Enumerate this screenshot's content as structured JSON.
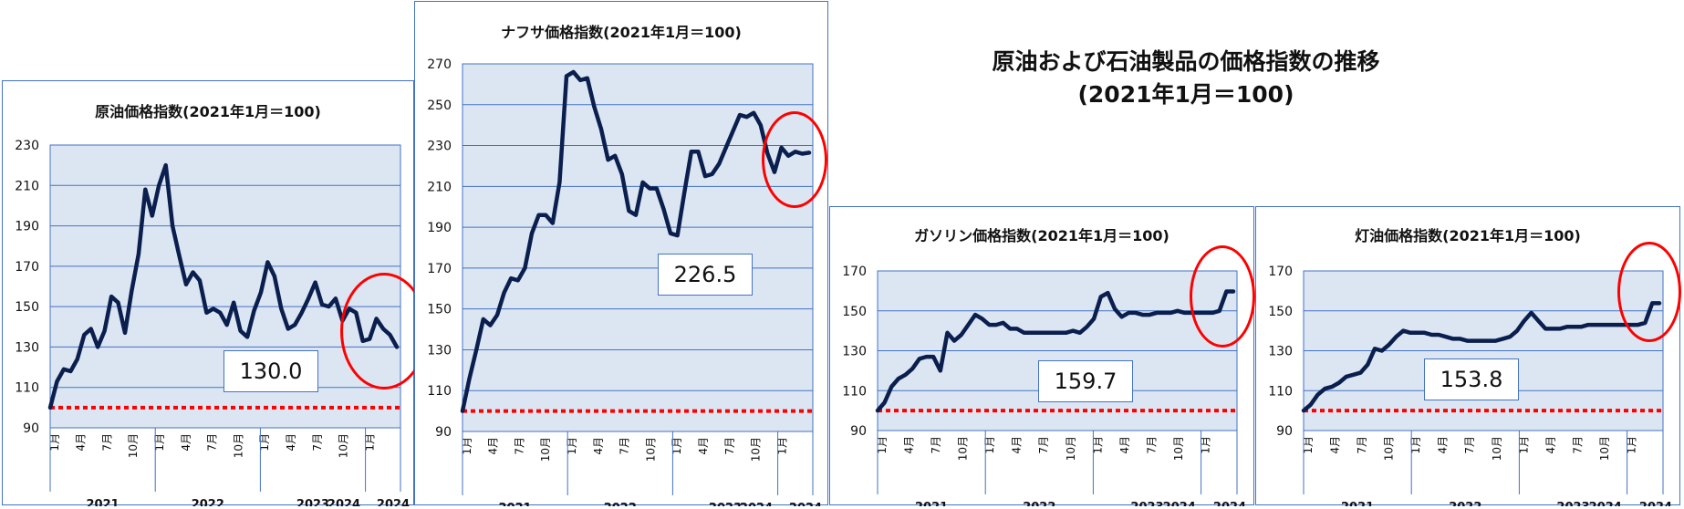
{
  "page": {
    "title_line1": "原油および石油製品の価格指数の推移",
    "title_line2": "(2021年1月＝100)"
  },
  "colors": {
    "line": "#0b1f4f",
    "plot_bg": "#dce6f2",
    "grid": "#4472c4",
    "baseline": "#ff0000",
    "circle": "#ff0000"
  },
  "chart_data": [
    {
      "id": "crude",
      "type": "line",
      "title": "原油価格指数(2021年1月＝100)",
      "callout": "130.0",
      "ylim": [
        90,
        230
      ],
      "yticks": [
        "90",
        "110",
        "130",
        "150",
        "170",
        "190",
        "210",
        "230"
      ],
      "baseline": 100,
      "month_labels": [
        "1月",
        "4月",
        "7月",
        "10月"
      ],
      "last_month_label": "1月",
      "years": [
        "2021",
        "2022",
        "2023",
        "2024",
        "2024"
      ],
      "values": [
        100,
        113,
        119,
        118,
        124,
        136,
        139,
        130,
        138,
        155,
        152,
        137,
        158,
        176,
        208,
        195,
        210,
        220,
        190,
        175,
        161,
        167,
        163,
        147,
        149,
        147,
        141,
        152,
        138,
        135,
        148,
        157,
        172,
        165,
        149,
        139,
        141,
        147,
        154,
        162,
        151,
        150,
        154,
        143,
        149,
        147,
        133,
        134,
        144,
        139,
        136,
        130
      ]
    },
    {
      "id": "naphtha",
      "type": "line",
      "title": "ナフサ価格指数(2021年1月＝100)",
      "callout": "226.5",
      "ylim": [
        90,
        270
      ],
      "yticks": [
        "90",
        "110",
        "130",
        "150",
        "170",
        "190",
        "210",
        "230",
        "250",
        "270"
      ],
      "baseline": 100,
      "month_labels": [
        "1月",
        "4月",
        "7月",
        "10月"
      ],
      "last_month_label": "1月",
      "years": [
        "2021",
        "2022",
        "2023",
        "2024",
        "2024"
      ],
      "values": [
        100,
        116,
        130,
        145,
        142,
        147,
        158,
        165,
        164,
        170,
        187,
        196,
        196,
        192,
        212,
        264,
        266,
        262,
        263,
        249,
        238,
        223,
        225,
        216,
        198,
        196,
        212,
        209,
        209,
        199,
        187,
        186,
        207,
        227,
        227,
        215,
        216,
        221,
        229,
        237,
        245,
        244,
        246,
        240,
        226,
        217,
        229,
        225,
        227,
        226,
        226.5
      ]
    },
    {
      "id": "gasoline",
      "type": "line",
      "title": "ガソリン価格指数(2021年1月＝100)",
      "callout": "159.7",
      "ylim": [
        90,
        170
      ],
      "yticks": [
        "90",
        "110",
        "130",
        "150",
        "170"
      ],
      "baseline": 100,
      "month_labels": [
        "1月",
        "4月",
        "7月",
        "10月"
      ],
      "last_month_label": "1月",
      "years": [
        "2021",
        "2022",
        "2023",
        "2024",
        "2024"
      ],
      "values": [
        100,
        104,
        112,
        116,
        118,
        121,
        126,
        127,
        127,
        120,
        139,
        135,
        138,
        143,
        148,
        146,
        143,
        143,
        144,
        141,
        141,
        139,
        139,
        139,
        139,
        139,
        139,
        139,
        140,
        139,
        142,
        146,
        157,
        159,
        151,
        147,
        149,
        149,
        148,
        148,
        149,
        149,
        149,
        150,
        149,
        149,
        149,
        149,
        149,
        150,
        159.7,
        159.7
      ]
    },
    {
      "id": "kerosene",
      "type": "line",
      "title": "灯油価格指数(2021年1月＝100)",
      "callout": "153.8",
      "ylim": [
        90,
        170
      ],
      "yticks": [
        "90",
        "110",
        "130",
        "150",
        "170"
      ],
      "baseline": 100,
      "month_labels": [
        "1月",
        "4月",
        "7月",
        "10月"
      ],
      "last_month_label": "1月",
      "years": [
        "2021",
        "2022",
        "2023",
        "2024",
        "2024"
      ],
      "values": [
        100,
        103,
        108,
        111,
        112,
        114,
        117,
        118,
        119,
        123,
        131,
        130,
        133,
        137,
        140,
        139,
        139,
        139,
        138,
        138,
        137,
        136,
        136,
        135,
        135,
        135,
        135,
        135,
        136,
        137,
        140,
        145,
        149,
        145,
        141,
        141,
        141,
        142,
        142,
        142,
        143,
        143,
        143,
        143,
        143,
        143,
        143,
        143,
        144,
        153.8,
        153.8
      ]
    }
  ]
}
